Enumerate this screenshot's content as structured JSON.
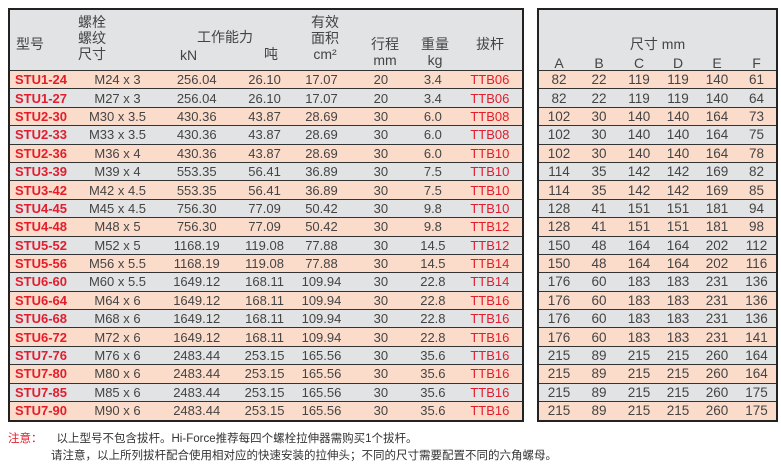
{
  "left_header": {
    "model": "型号",
    "thread": [
      "螺栓",
      "螺纹",
      "尺寸"
    ],
    "capacity": "工作能力",
    "kn": "kN",
    "ton": "吨",
    "area": [
      "有效",
      "面积",
      "cm²"
    ],
    "stroke": [
      "行程",
      "mm"
    ],
    "weight": [
      "重量",
      "kg"
    ],
    "rod": "拔杆"
  },
  "right_header": {
    "title": "尺寸 mm",
    "cols": [
      "A",
      "B",
      "C",
      "D",
      "E",
      "F"
    ]
  },
  "rows": [
    [
      "STU1-24",
      "M24 x 3",
      "256.04",
      "26.10",
      "17.07",
      "20",
      "3.4",
      "TTB06",
      [
        "82",
        "22",
        "119",
        "119",
        "140",
        "61"
      ]
    ],
    [
      "STU1-27",
      "M27 x 3",
      "256.04",
      "26.10",
      "17.07",
      "20",
      "3.4",
      "TTB06",
      [
        "82",
        "22",
        "119",
        "119",
        "140",
        "64"
      ]
    ],
    [
      "STU2-30",
      "M30 x 3.5",
      "430.36",
      "43.87",
      "28.69",
      "30",
      "6.0",
      "TTB08",
      [
        "102",
        "30",
        "140",
        "140",
        "164",
        "73"
      ]
    ],
    [
      "STU2-33",
      "M33 x 3.5",
      "430.36",
      "43.87",
      "28.69",
      "30",
      "6.0",
      "TTB08",
      [
        "102",
        "30",
        "140",
        "140",
        "164",
        "75"
      ]
    ],
    [
      "STU2-36",
      "M36 x 4",
      "430.36",
      "43.87",
      "28.69",
      "30",
      "6.0",
      "TTB10",
      [
        "102",
        "30",
        "140",
        "140",
        "164",
        "78"
      ]
    ],
    [
      "STU3-39",
      "M39 x 4",
      "553.35",
      "56.41",
      "36.89",
      "30",
      "7.5",
      "TTB10",
      [
        "114",
        "35",
        "142",
        "142",
        "169",
        "82"
      ]
    ],
    [
      "STU3-42",
      "M42 x 4.5",
      "553.35",
      "56.41",
      "36.89",
      "30",
      "7.5",
      "TTB10",
      [
        "114",
        "35",
        "142",
        "142",
        "169",
        "85"
      ]
    ],
    [
      "STU4-45",
      "M45 x 4.5",
      "756.30",
      "77.09",
      "50.42",
      "30",
      "9.8",
      "TTB10",
      [
        "128",
        "41",
        "151",
        "151",
        "181",
        "94"
      ]
    ],
    [
      "STU4-48",
      "M48 x 5",
      "756.30",
      "77.09",
      "50.42",
      "30",
      "9.8",
      "TTB12",
      [
        "128",
        "41",
        "151",
        "151",
        "181",
        "98"
      ]
    ],
    [
      "STU5-52",
      "M52 x 5",
      "1168.19",
      "119.08",
      "77.88",
      "30",
      "14.5",
      "TTB12",
      [
        "150",
        "48",
        "164",
        "164",
        "202",
        "112"
      ]
    ],
    [
      "STU5-56",
      "M56 x 5.5",
      "1168.19",
      "119.08",
      "77.88",
      "30",
      "14.5",
      "TTB14",
      [
        "150",
        "48",
        "164",
        "164",
        "202",
        "116"
      ]
    ],
    [
      "STU6-60",
      "M60 x 5.5",
      "1649.12",
      "168.11",
      "109.94",
      "30",
      "22.8",
      "TTB14",
      [
        "176",
        "60",
        "183",
        "183",
        "231",
        "136"
      ]
    ],
    [
      "STU6-64",
      "M64 x 6",
      "1649.12",
      "168.11",
      "109.94",
      "30",
      "22.8",
      "TTB16",
      [
        "176",
        "60",
        "183",
        "183",
        "231",
        "136"
      ]
    ],
    [
      "STU6-68",
      "M68 x 6",
      "1649.12",
      "168.11",
      "109.94",
      "30",
      "22.8",
      "TTB16",
      [
        "176",
        "60",
        "183",
        "183",
        "231",
        "136"
      ]
    ],
    [
      "STU6-72",
      "M72 x 6",
      "1649.12",
      "168.11",
      "109.94",
      "30",
      "22.8",
      "TTB16",
      [
        "176",
        "60",
        "183",
        "183",
        "231",
        "141"
      ]
    ],
    [
      "STU7-76",
      "M76 x 6",
      "2483.44",
      "253.15",
      "165.56",
      "30",
      "35.6",
      "TTB16",
      [
        "215",
        "89",
        "215",
        "215",
        "260",
        "164"
      ]
    ],
    [
      "STU7-80",
      "M80 x 6",
      "2483.44",
      "253.15",
      "165.56",
      "30",
      "35.6",
      "TTB16",
      [
        "215",
        "89",
        "215",
        "215",
        "260",
        "164"
      ]
    ],
    [
      "STU7-85",
      "M85 x 6",
      "2483.44",
      "253.15",
      "165.56",
      "30",
      "35.6",
      "TTB16",
      [
        "215",
        "89",
        "215",
        "215",
        "260",
        "175"
      ]
    ],
    [
      "STU7-90",
      "M90 x 6",
      "2483.44",
      "253.15",
      "165.56",
      "30",
      "35.6",
      "TTB16",
      [
        "215",
        "89",
        "215",
        "215",
        "260",
        "175"
      ]
    ]
  ],
  "notes": {
    "label": "注意：",
    "line1": "以上型号不包含拔杆。Hi-Force推荐每四个螺栓拉伸器需购买1个拔杆。",
    "line2": "请注意，以上所列拔杆配合使用相对应的快速安装的拉伸头；不同的尺寸需要配置不同的六角螺母。"
  },
  "colors": {
    "peach_row": "#fbdccb",
    "gray_row": "#e2e3e5",
    "accent_red": "#e31d2b"
  }
}
